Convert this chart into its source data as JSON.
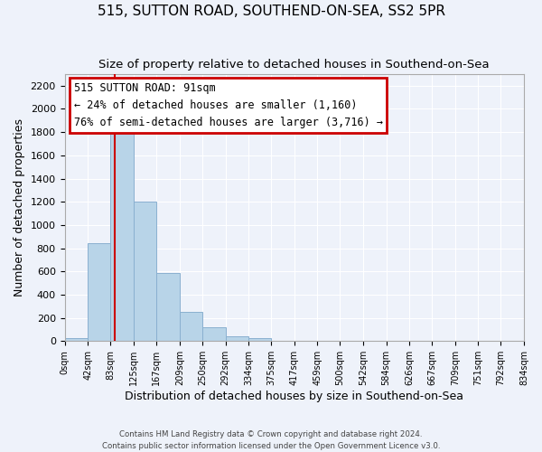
{
  "title": "515, SUTTON ROAD, SOUTHEND-ON-SEA, SS2 5PR",
  "subtitle": "Size of property relative to detached houses in Southend-on-Sea",
  "xlabel": "Distribution of detached houses by size in Southend-on-Sea",
  "ylabel": "Number of detached properties",
  "bar_edges": [
    0,
    42,
    83,
    125,
    167,
    209,
    250,
    292,
    334,
    375,
    417,
    459,
    500,
    542,
    584,
    626,
    667,
    709,
    751,
    792,
    834
  ],
  "bar_heights": [
    25,
    840,
    1800,
    1200,
    590,
    255,
    120,
    45,
    25,
    0,
    0,
    0,
    0,
    0,
    0,
    0,
    0,
    0,
    0,
    0
  ],
  "bar_color": "#b8d4e8",
  "bar_edge_color": "#8ab0d0",
  "vline_x": 91,
  "vline_color": "#cc0000",
  "annotation_title": "515 SUTTON ROAD: 91sqm",
  "annotation_line1": "← 24% of detached houses are smaller (1,160)",
  "annotation_line2": "76% of semi-detached houses are larger (3,716) →",
  "annotation_box_color": "#ffffff",
  "annotation_box_edge": "#cc0000",
  "ylim": [
    0,
    2300
  ],
  "yticks": [
    0,
    200,
    400,
    600,
    800,
    1000,
    1200,
    1400,
    1600,
    1800,
    2000,
    2200
  ],
  "tick_labels": [
    "0sqm",
    "42sqm",
    "83sqm",
    "125sqm",
    "167sqm",
    "209sqm",
    "250sqm",
    "292sqm",
    "334sqm",
    "375sqm",
    "417sqm",
    "459sqm",
    "500sqm",
    "542sqm",
    "584sqm",
    "626sqm",
    "667sqm",
    "709sqm",
    "751sqm",
    "792sqm",
    "834sqm"
  ],
  "footer1": "Contains HM Land Registry data © Crown copyright and database right 2024.",
  "footer2": "Contains public sector information licensed under the Open Government Licence v3.0.",
  "background_color": "#eef2fa",
  "grid_color": "#ffffff",
  "title_fontsize": 11,
  "subtitle_fontsize": 9.5,
  "ylabel_fontsize": 9,
  "xlabel_fontsize": 9,
  "ytick_fontsize": 8,
  "xtick_fontsize": 7
}
